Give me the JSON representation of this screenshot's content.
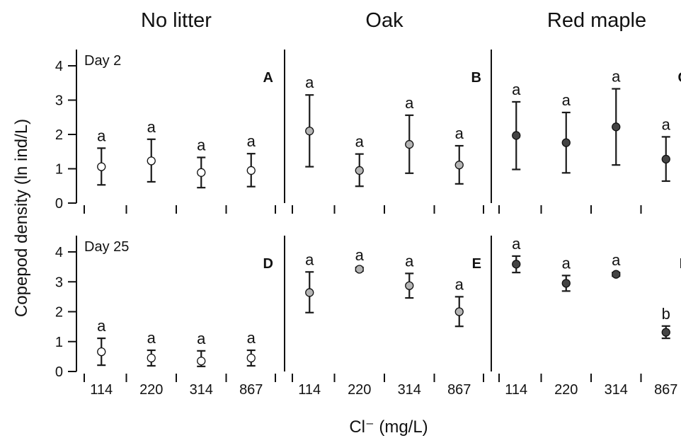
{
  "figure": {
    "column_titles": [
      "No litter",
      "Oak",
      "Red maple"
    ],
    "ylabel": "Copepod density (ln ind/L)",
    "xlabel": "Cl⁻ (mg/L)"
  },
  "chart_data": [
    {
      "panel_letter": "A",
      "row_label": "Day 2",
      "type": "scatter",
      "categories": [
        "114",
        "220",
        "314",
        "867"
      ],
      "values": [
        1.06,
        1.23,
        0.89,
        0.95
      ],
      "err_low": [
        0.53,
        0.62,
        0.45,
        0.48
      ],
      "err_high": [
        1.6,
        1.86,
        1.33,
        1.44
      ],
      "sig_letters": [
        "a",
        "a",
        "a",
        "a"
      ],
      "ylim": [
        0,
        4
      ],
      "yticks": [
        0,
        1,
        2,
        3,
        4
      ],
      "marker_color": "#ffffff"
    },
    {
      "panel_letter": "B",
      "row_label": "",
      "type": "scatter",
      "categories": [
        "114",
        "220",
        "314",
        "867"
      ],
      "values": [
        2.1,
        0.95,
        1.71,
        1.11
      ],
      "err_low": [
        1.06,
        0.49,
        0.87,
        0.56
      ],
      "err_high": [
        3.15,
        1.43,
        2.56,
        1.67
      ],
      "sig_letters": [
        "a",
        "a",
        "a",
        "a"
      ],
      "ylim": [
        0,
        4
      ],
      "yticks": [
        0,
        1,
        2,
        3,
        4
      ],
      "marker_color": "#b4b4b4"
    },
    {
      "panel_letter": "C",
      "row_label": "",
      "type": "scatter",
      "categories": [
        "114",
        "220",
        "314",
        "867"
      ],
      "values": [
        1.97,
        1.76,
        2.22,
        1.28
      ],
      "err_low": [
        0.98,
        0.88,
        1.11,
        0.64
      ],
      "err_high": [
        2.95,
        2.64,
        3.33,
        1.93
      ],
      "sig_letters": [
        "a",
        "a",
        "a",
        "a"
      ],
      "ylim": [
        0,
        4
      ],
      "yticks": [
        0,
        1,
        2,
        3,
        4
      ],
      "marker_color": "#444444"
    },
    {
      "panel_letter": "D",
      "row_label": "Day 25",
      "type": "scatter",
      "categories": [
        "114",
        "220",
        "314",
        "867"
      ],
      "values": [
        0.66,
        0.45,
        0.35,
        0.45
      ],
      "err_low": [
        0.21,
        0.19,
        0.17,
        0.19
      ],
      "err_high": [
        1.11,
        0.71,
        0.69,
        0.71
      ],
      "sig_letters": [
        "a",
        "a",
        "a",
        "a"
      ],
      "ylim": [
        0,
        4
      ],
      "yticks": [
        0,
        1,
        2,
        3,
        4
      ],
      "marker_color": "#ffffff"
    },
    {
      "panel_letter": "E",
      "row_label": "",
      "type": "scatter",
      "categories": [
        "114",
        "220",
        "314",
        "867"
      ],
      "values": [
        2.64,
        3.42,
        2.87,
        2.0
      ],
      "err_low": [
        1.97,
        3.36,
        2.46,
        1.51
      ],
      "err_high": [
        3.33,
        3.48,
        3.28,
        2.5
      ],
      "sig_letters": [
        "a",
        "a",
        "a",
        "a"
      ],
      "ylim": [
        0,
        4
      ],
      "yticks": [
        0,
        1,
        2,
        3,
        4
      ],
      "marker_color": "#b4b4b4"
    },
    {
      "panel_letter": "F",
      "row_label": "",
      "type": "scatter",
      "categories": [
        "114",
        "220",
        "314",
        "867"
      ],
      "values": [
        3.59,
        2.95,
        3.25,
        1.31
      ],
      "err_low": [
        3.31,
        2.69,
        3.19,
        1.11
      ],
      "err_high": [
        3.86,
        3.21,
        3.31,
        1.52
      ],
      "sig_letters": [
        "a",
        "a",
        "a",
        "b"
      ],
      "ylim": [
        0,
        4
      ],
      "yticks": [
        0,
        1,
        2,
        3,
        4
      ],
      "marker_color": "#444444"
    }
  ]
}
